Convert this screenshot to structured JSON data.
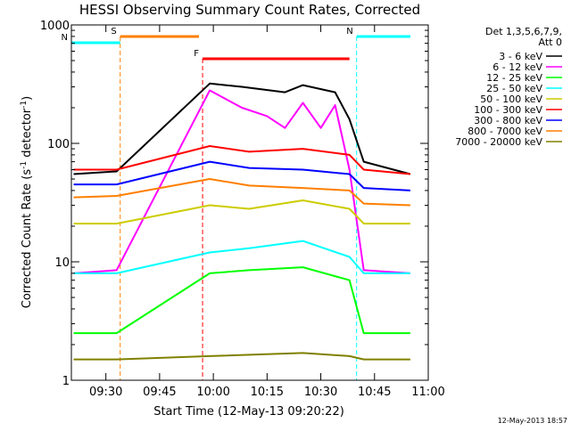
{
  "chart_data": {
    "type": "line",
    "title": "HESSI Observing Summary Count Rates, Corrected",
    "xlabel": "Start Time (12-May-13 09:20:22)",
    "ylabel": "Corrected Count Rate (s⁻¹ detector⁻¹)",
    "ylabel_parts": {
      "main": "Corrected Count Rate (s",
      "exp": "-1",
      "mid": " detector",
      "tail": ")"
    },
    "y_scale": "log",
    "ylim": [
      1,
      1000
    ],
    "xlim": [
      "09:20:22",
      "11:00"
    ],
    "x_ticks": [
      "09:30",
      "09:45",
      "10:00",
      "10:15",
      "10:30",
      "10:45",
      "11:00"
    ],
    "y_ticks": [
      "1",
      "10",
      "100",
      "1000"
    ],
    "legend_header": [
      "Det 1,3,5,6,7,9,",
      "Att 0"
    ],
    "legend_position": "right",
    "timestamp": "12-May-2013 18:57",
    "flag_bars": [
      {
        "label": "S",
        "color": "#ff7f00",
        "start": "09:34",
        "end": "09:56"
      },
      {
        "label": "N",
        "color": "#00ffff",
        "start": "09:20:22",
        "end": "09:34"
      },
      {
        "label": "N",
        "color": "#00ffff",
        "start": "10:40",
        "end": "10:55"
      },
      {
        "label": "F",
        "color": "#ff0000",
        "start": "09:57",
        "end": "10:38"
      }
    ],
    "series": [
      {
        "name": "3 - 6 keV",
        "color": "#000000",
        "values": [
          {
            "time": "09:21",
            "value": 55
          },
          {
            "time": "09:33",
            "value": 58
          },
          {
            "time": "09:59",
            "value": 320
          },
          {
            "time": "10:08",
            "value": 300
          },
          {
            "time": "10:20",
            "value": 270
          },
          {
            "time": "10:25",
            "value": 310
          },
          {
            "time": "10:34",
            "value": 270
          },
          {
            "time": "10:38",
            "value": 160
          },
          {
            "time": "10:42",
            "value": 70
          },
          {
            "time": "10:55",
            "value": 55
          }
        ]
      },
      {
        "name": "6 - 12 keV",
        "color": "#ff00ff",
        "values": [
          {
            "time": "09:21",
            "value": 8
          },
          {
            "time": "09:33",
            "value": 8.5
          },
          {
            "time": "09:59",
            "value": 280
          },
          {
            "time": "10:08",
            "value": 200
          },
          {
            "time": "10:15",
            "value": 170
          },
          {
            "time": "10:20",
            "value": 135
          },
          {
            "time": "10:25",
            "value": 220
          },
          {
            "time": "10:30",
            "value": 135
          },
          {
            "time": "10:34",
            "value": 210
          },
          {
            "time": "10:38",
            "value": 60
          },
          {
            "time": "10:42",
            "value": 8.5
          },
          {
            "time": "10:55",
            "value": 8
          }
        ]
      },
      {
        "name": "12 - 25 keV",
        "color": "#00ff00",
        "values": [
          {
            "time": "09:21",
            "value": 2.5
          },
          {
            "time": "09:33",
            "value": 2.5
          },
          {
            "time": "09:59",
            "value": 8
          },
          {
            "time": "10:10",
            "value": 8.5
          },
          {
            "time": "10:25",
            "value": 9
          },
          {
            "time": "10:38",
            "value": 7
          },
          {
            "time": "10:42",
            "value": 2.5
          },
          {
            "time": "10:55",
            "value": 2.5
          }
        ]
      },
      {
        "name": "25 - 50 keV",
        "color": "#00ffff",
        "values": [
          {
            "time": "09:21",
            "value": 8
          },
          {
            "time": "09:33",
            "value": 8
          },
          {
            "time": "09:59",
            "value": 12
          },
          {
            "time": "10:10",
            "value": 13
          },
          {
            "time": "10:25",
            "value": 15
          },
          {
            "time": "10:38",
            "value": 11
          },
          {
            "time": "10:42",
            "value": 8
          },
          {
            "time": "10:55",
            "value": 8
          }
        ]
      },
      {
        "name": "50 - 100 keV",
        "color": "#cccc00",
        "values": [
          {
            "time": "09:21",
            "value": 21
          },
          {
            "time": "09:33",
            "value": 21
          },
          {
            "time": "09:59",
            "value": 30
          },
          {
            "time": "10:10",
            "value": 28
          },
          {
            "time": "10:25",
            "value": 33
          },
          {
            "time": "10:38",
            "value": 28
          },
          {
            "time": "10:42",
            "value": 21
          },
          {
            "time": "10:55",
            "value": 21
          }
        ]
      },
      {
        "name": "100 - 300 keV",
        "color": "#ff0000",
        "values": [
          {
            "time": "09:21",
            "value": 60
          },
          {
            "time": "09:33",
            "value": 60
          },
          {
            "time": "09:59",
            "value": 95
          },
          {
            "time": "10:10",
            "value": 85
          },
          {
            "time": "10:25",
            "value": 90
          },
          {
            "time": "10:38",
            "value": 80
          },
          {
            "time": "10:42",
            "value": 60
          },
          {
            "time": "10:55",
            "value": 55
          }
        ]
      },
      {
        "name": "300 - 800 keV",
        "color": "#0000ff",
        "values": [
          {
            "time": "09:21",
            "value": 45
          },
          {
            "time": "09:33",
            "value": 45
          },
          {
            "time": "09:59",
            "value": 70
          },
          {
            "time": "10:10",
            "value": 62
          },
          {
            "time": "10:25",
            "value": 60
          },
          {
            "time": "10:38",
            "value": 55
          },
          {
            "time": "10:42",
            "value": 42
          },
          {
            "time": "10:55",
            "value": 40
          }
        ]
      },
      {
        "name": "800 - 7000 keV",
        "color": "#ff7f00",
        "values": [
          {
            "time": "09:21",
            "value": 35
          },
          {
            "time": "09:33",
            "value": 36
          },
          {
            "time": "09:59",
            "value": 50
          },
          {
            "time": "10:10",
            "value": 44
          },
          {
            "time": "10:25",
            "value": 42
          },
          {
            "time": "10:38",
            "value": 40
          },
          {
            "time": "10:42",
            "value": 31
          },
          {
            "time": "10:55",
            "value": 30
          }
        ]
      },
      {
        "name": "7000 - 20000 keV",
        "color": "#808000",
        "values": [
          {
            "time": "09:21",
            "value": 1.5
          },
          {
            "time": "09:33",
            "value": 1.5
          },
          {
            "time": "09:59",
            "value": 1.6
          },
          {
            "time": "10:25",
            "value": 1.7
          },
          {
            "time": "10:38",
            "value": 1.6
          },
          {
            "time": "10:42",
            "value": 1.5
          },
          {
            "time": "10:55",
            "value": 1.5
          }
        ]
      }
    ]
  }
}
